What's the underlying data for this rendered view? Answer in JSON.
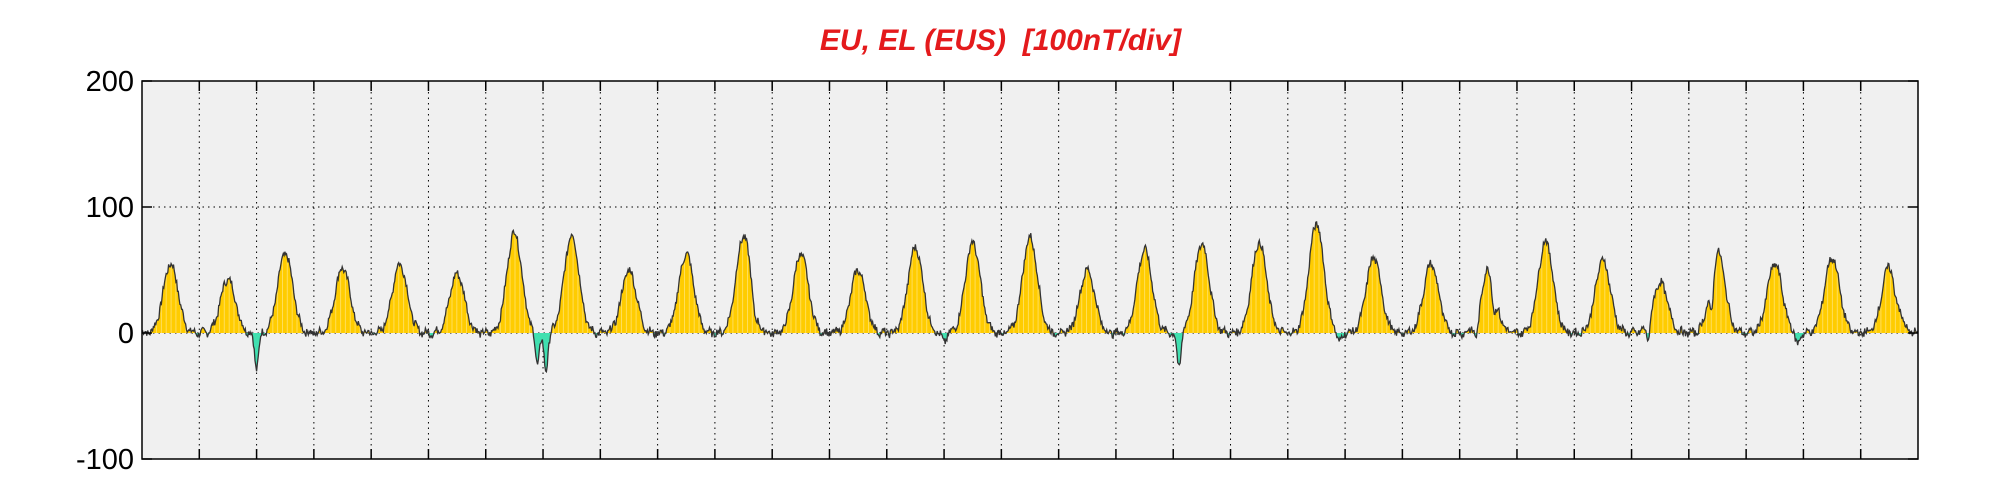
{
  "chart_data": {
    "type": "area",
    "title": "EU, EL (EUS)  [100nT/div]",
    "xlabel": "",
    "ylabel": "",
    "ylim": [
      -100,
      200
    ],
    "yticks": [
      200,
      100,
      0,
      -100
    ],
    "grid": true,
    "x_range": [
      0,
      31
    ],
    "x_divisions": 31,
    "positive_fill_color": "#ffcc00",
    "negative_fill_color": "#40e0b0",
    "line_color": "#333333",
    "plot_background": "#f0f0f0",
    "title_color": "#e41a1c",
    "series": [
      {
        "type": "daily_peaks",
        "peak_day_offset": 0.5,
        "values": [
          55,
          43,
          63,
          52,
          55,
          47,
          80,
          78,
          50,
          63,
          77,
          63,
          50,
          68,
          72,
          76,
          50,
          66,
          71,
          72,
          87,
          60,
          55,
          50,
          73,
          58,
          40,
          65,
          55,
          60,
          53
        ]
      },
      {
        "type": "negative_excursions",
        "points": [
          {
            "x": 2.0,
            "y": -28
          },
          {
            "x": 6.9,
            "y": -25
          },
          {
            "x": 7.05,
            "y": -30
          },
          {
            "x": 10.7,
            "y": -10
          },
          {
            "x": 14.0,
            "y": -8
          },
          {
            "x": 18.1,
            "y": -28
          },
          {
            "x": 20.9,
            "y": -8
          },
          {
            "x": 23.3,
            "y": -18
          },
          {
            "x": 23.6,
            "y": -20
          },
          {
            "x": 26.3,
            "y": -15
          },
          {
            "x": 27.4,
            "y": -30
          },
          {
            "x": 28.9,
            "y": -10
          },
          {
            "x": 30.6,
            "y": -10
          }
        ]
      }
    ]
  }
}
